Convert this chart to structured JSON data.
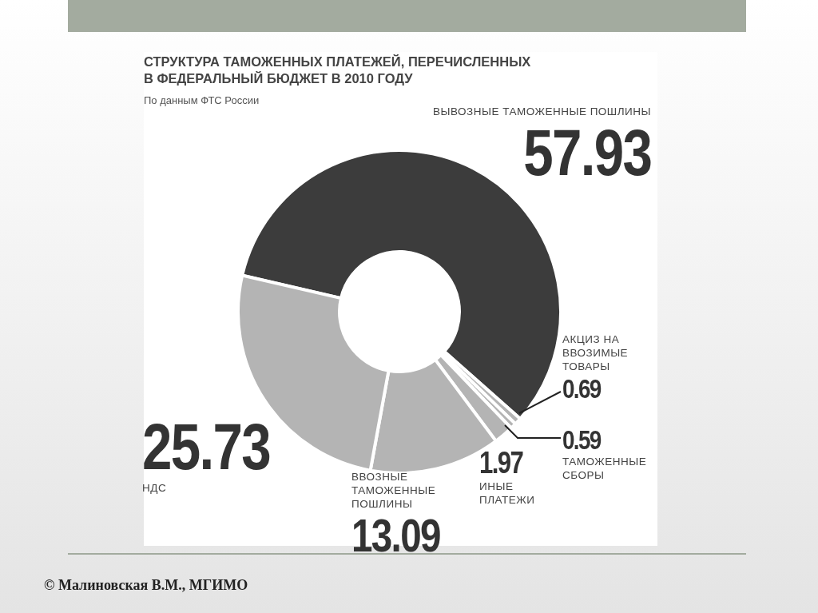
{
  "chart_data": {
    "type": "donut",
    "title": "СТРУКТУРА ТАМОЖЕННЫХ ПЛАТЕЖЕЙ, ПЕРЕЧИСЛЕННЫХ В ФЕДЕРАЛЬНЫЙ БЮДЖЕТ В 2010 ГОДУ",
    "subtitle": "По данным ФТС России",
    "categories": [
      "ВЫВОЗНЫЕ ТАМОЖЕННЫЕ ПОШЛИНЫ",
      "АКЦИЗ НА ВВОЗИМЫЕ ТОВАРЫ",
      "ТАМОЖЕННЫЕ СБОРЫ",
      "ИНЫЕ ПЛАТЕЖИ",
      "ВВОЗНЫЕ ТАМОЖЕННЫЕ ПОШЛИНЫ",
      "НДС"
    ],
    "values": [
      57.93,
      0.69,
      0.59,
      1.97,
      13.09,
      25.73
    ],
    "colors": [
      "#3c3c3c",
      "#b4b4b4",
      "#b4b4b4",
      "#b4b4b4",
      "#b4b4b4",
      "#b4b4b4"
    ],
    "data_labels": true,
    "legend": false,
    "annotations": [
      "© Малиновская В.М., МГИМО"
    ]
  }
}
